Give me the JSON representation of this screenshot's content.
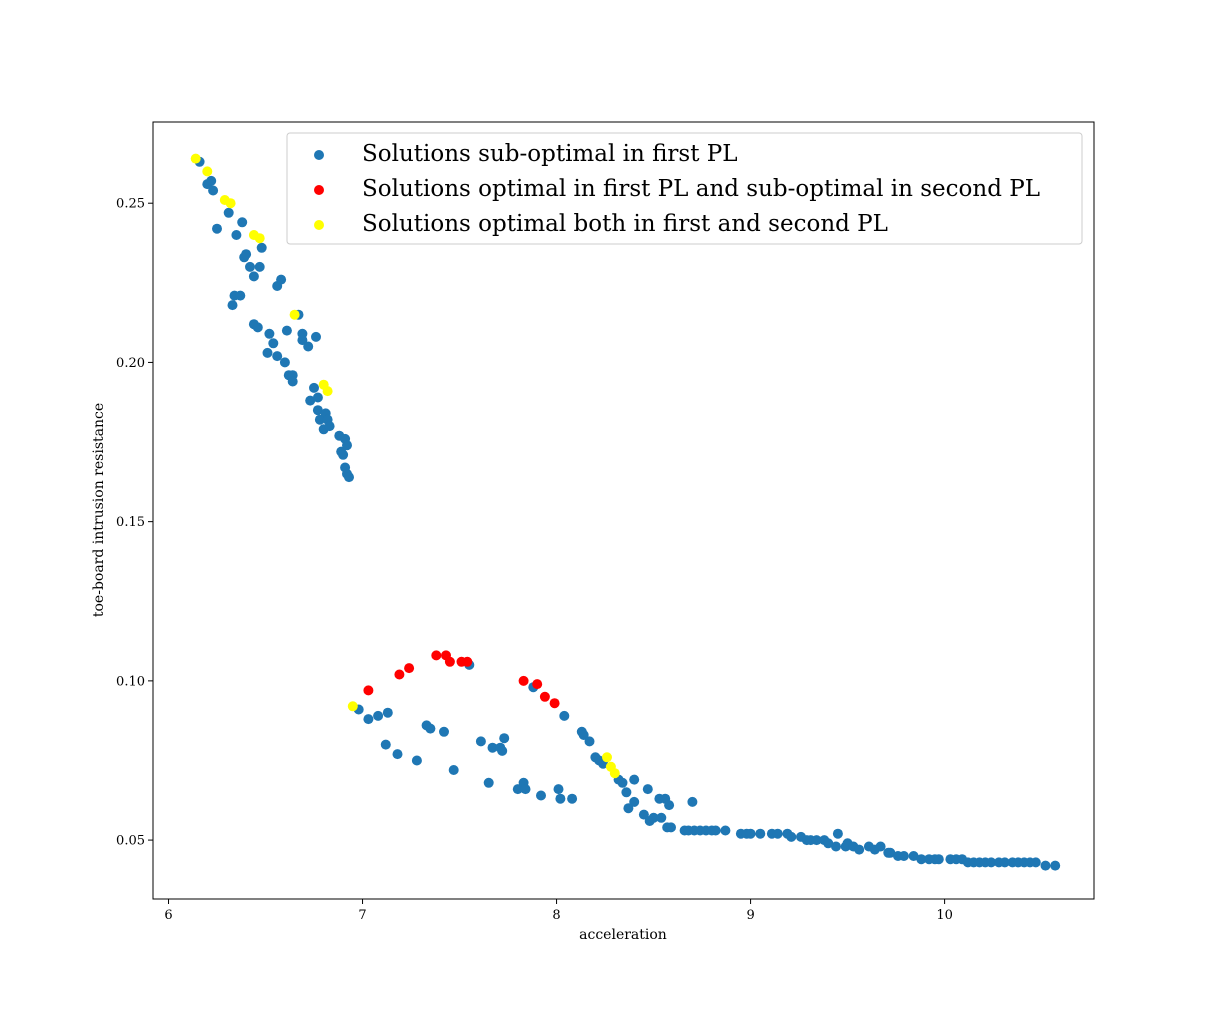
{
  "chart_data": {
    "type": "scatter",
    "title": "",
    "xlabel": "acceleration",
    "ylabel": "toe-board intrusion resistance",
    "xlim": [
      5.92,
      10.77
    ],
    "ylim": [
      0.0315,
      0.2755
    ],
    "xticks": [
      6,
      7,
      8,
      9,
      10
    ],
    "yticks": [
      0.05,
      0.1,
      0.15,
      0.2,
      0.25
    ],
    "xtick_labels": [
      "6",
      "7",
      "8",
      "9",
      "10"
    ],
    "ytick_labels": [
      "0.05",
      "0.10",
      "0.15",
      "0.20",
      "0.25"
    ],
    "grid": false,
    "legend_position": "top-right",
    "series": [
      {
        "name": "Solutions sub-optimal in first PL",
        "color": "#1f77b4",
        "points": [
          [
            6.16,
            0.263
          ],
          [
            6.2,
            0.256
          ],
          [
            6.22,
            0.257
          ],
          [
            6.23,
            0.254
          ],
          [
            6.25,
            0.242
          ],
          [
            6.31,
            0.247
          ],
          [
            6.34,
            0.221
          ],
          [
            6.33,
            0.218
          ],
          [
            6.35,
            0.24
          ],
          [
            6.37,
            0.221
          ],
          [
            6.38,
            0.244
          ],
          [
            6.39,
            0.233
          ],
          [
            6.4,
            0.234
          ],
          [
            6.42,
            0.23
          ],
          [
            6.44,
            0.227
          ],
          [
            6.47,
            0.23
          ],
          [
            6.48,
            0.236
          ],
          [
            6.44,
            0.212
          ],
          [
            6.46,
            0.211
          ],
          [
            6.51,
            0.203
          ],
          [
            6.52,
            0.209
          ],
          [
            6.54,
            0.206
          ],
          [
            6.56,
            0.202
          ],
          [
            6.56,
            0.224
          ],
          [
            6.58,
            0.226
          ],
          [
            6.6,
            0.2
          ],
          [
            6.61,
            0.21
          ],
          [
            6.62,
            0.196
          ],
          [
            6.64,
            0.196
          ],
          [
            6.64,
            0.194
          ],
          [
            6.67,
            0.215
          ],
          [
            6.69,
            0.209
          ],
          [
            6.69,
            0.207
          ],
          [
            6.72,
            0.205
          ],
          [
            6.73,
            0.188
          ],
          [
            6.75,
            0.192
          ],
          [
            6.76,
            0.208
          ],
          [
            6.77,
            0.185
          ],
          [
            6.77,
            0.189
          ],
          [
            6.78,
            0.182
          ],
          [
            6.8,
            0.179
          ],
          [
            6.81,
            0.184
          ],
          [
            6.82,
            0.182
          ],
          [
            6.83,
            0.18
          ],
          [
            6.88,
            0.177
          ],
          [
            6.89,
            0.172
          ],
          [
            6.9,
            0.171
          ],
          [
            6.91,
            0.176
          ],
          [
            6.92,
            0.174
          ],
          [
            6.91,
            0.167
          ],
          [
            6.92,
            0.165
          ],
          [
            6.93,
            0.164
          ],
          [
            6.98,
            0.091
          ],
          [
            7.03,
            0.088
          ],
          [
            7.08,
            0.089
          ],
          [
            7.12,
            0.08
          ],
          [
            7.13,
            0.09
          ],
          [
            7.18,
            0.077
          ],
          [
            7.28,
            0.075
          ],
          [
            7.33,
            0.086
          ],
          [
            7.35,
            0.085
          ],
          [
            7.42,
            0.084
          ],
          [
            7.47,
            0.072
          ],
          [
            7.55,
            0.105
          ],
          [
            7.61,
            0.081
          ],
          [
            7.65,
            0.068
          ],
          [
            7.67,
            0.079
          ],
          [
            7.71,
            0.079
          ],
          [
            7.72,
            0.078
          ],
          [
            7.73,
            0.082
          ],
          [
            7.8,
            0.066
          ],
          [
            7.83,
            0.068
          ],
          [
            7.84,
            0.066
          ],
          [
            7.88,
            0.098
          ],
          [
            7.92,
            0.064
          ],
          [
            8.01,
            0.066
          ],
          [
            8.02,
            0.063
          ],
          [
            8.04,
            0.089
          ],
          [
            8.08,
            0.063
          ],
          [
            8.13,
            0.084
          ],
          [
            8.14,
            0.083
          ],
          [
            8.17,
            0.081
          ],
          [
            8.2,
            0.076
          ],
          [
            8.22,
            0.075
          ],
          [
            8.24,
            0.074
          ],
          [
            8.32,
            0.069
          ],
          [
            8.34,
            0.068
          ],
          [
            8.36,
            0.065
          ],
          [
            8.37,
            0.06
          ],
          [
            8.4,
            0.062
          ],
          [
            8.4,
            0.069
          ],
          [
            8.45,
            0.058
          ],
          [
            8.47,
            0.066
          ],
          [
            8.48,
            0.056
          ],
          [
            8.5,
            0.057
          ],
          [
            8.53,
            0.063
          ],
          [
            8.54,
            0.057
          ],
          [
            8.56,
            0.063
          ],
          [
            8.57,
            0.054
          ],
          [
            8.58,
            0.061
          ],
          [
            8.59,
            0.054
          ],
          [
            8.66,
            0.053
          ],
          [
            8.68,
            0.053
          ],
          [
            8.7,
            0.062
          ],
          [
            8.71,
            0.053
          ],
          [
            8.74,
            0.053
          ],
          [
            8.77,
            0.053
          ],
          [
            8.8,
            0.053
          ],
          [
            8.82,
            0.053
          ],
          [
            8.87,
            0.053
          ],
          [
            8.95,
            0.052
          ],
          [
            8.98,
            0.052
          ],
          [
            9.0,
            0.052
          ],
          [
            9.05,
            0.052
          ],
          [
            9.11,
            0.052
          ],
          [
            9.14,
            0.052
          ],
          [
            9.19,
            0.052
          ],
          [
            9.21,
            0.051
          ],
          [
            9.26,
            0.051
          ],
          [
            9.29,
            0.05
          ],
          [
            9.31,
            0.05
          ],
          [
            9.34,
            0.05
          ],
          [
            9.38,
            0.05
          ],
          [
            9.4,
            0.049
          ],
          [
            9.44,
            0.048
          ],
          [
            9.45,
            0.052
          ],
          [
            9.49,
            0.048
          ],
          [
            9.5,
            0.049
          ],
          [
            9.53,
            0.048
          ],
          [
            9.56,
            0.047
          ],
          [
            9.61,
            0.048
          ],
          [
            9.64,
            0.047
          ],
          [
            9.67,
            0.048
          ],
          [
            9.71,
            0.046
          ],
          [
            9.72,
            0.046
          ],
          [
            9.76,
            0.045
          ],
          [
            9.79,
            0.045
          ],
          [
            9.84,
            0.045
          ],
          [
            9.88,
            0.044
          ],
          [
            9.92,
            0.044
          ],
          [
            9.95,
            0.044
          ],
          [
            9.97,
            0.044
          ],
          [
            10.03,
            0.044
          ],
          [
            10.06,
            0.044
          ],
          [
            10.09,
            0.044
          ],
          [
            10.12,
            0.043
          ],
          [
            10.15,
            0.043
          ],
          [
            10.18,
            0.043
          ],
          [
            10.21,
            0.043
          ],
          [
            10.24,
            0.043
          ],
          [
            10.28,
            0.043
          ],
          [
            10.31,
            0.043
          ],
          [
            10.35,
            0.043
          ],
          [
            10.38,
            0.043
          ],
          [
            10.41,
            0.043
          ],
          [
            10.44,
            0.043
          ],
          [
            10.47,
            0.043
          ],
          [
            10.52,
            0.042
          ],
          [
            10.57,
            0.042
          ]
        ]
      },
      {
        "name": "Solutions optimal in first PL and sub-optimal in second PL",
        "color": "#ff0000",
        "points": [
          [
            7.03,
            0.097
          ],
          [
            7.19,
            0.102
          ],
          [
            7.24,
            0.104
          ],
          [
            7.38,
            0.108
          ],
          [
            7.43,
            0.108
          ],
          [
            7.45,
            0.106
          ],
          [
            7.51,
            0.106
          ],
          [
            7.54,
            0.106
          ],
          [
            7.83,
            0.1
          ],
          [
            7.9,
            0.099
          ],
          [
            7.94,
            0.095
          ],
          [
            7.99,
            0.093
          ]
        ]
      },
      {
        "name": "Solutions optimal both in first and second PL",
        "color": "#ffff00",
        "points": [
          [
            6.14,
            0.264
          ],
          [
            6.2,
            0.26
          ],
          [
            6.29,
            0.251
          ],
          [
            6.32,
            0.25
          ],
          [
            6.44,
            0.24
          ],
          [
            6.47,
            0.239
          ],
          [
            6.65,
            0.215
          ],
          [
            6.8,
            0.193
          ],
          [
            6.82,
            0.191
          ],
          [
            6.95,
            0.092
          ],
          [
            8.26,
            0.076
          ],
          [
            8.28,
            0.073
          ],
          [
            8.3,
            0.071
          ]
        ]
      }
    ]
  }
}
